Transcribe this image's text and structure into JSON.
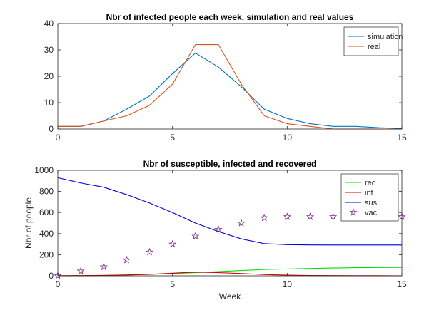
{
  "chart_data": [
    {
      "type": "line",
      "title": "Nbr of infected people each week, simulation and real values",
      "xlabel": "",
      "ylabel": "",
      "xlim": [
        0,
        15
      ],
      "ylim": [
        0,
        40
      ],
      "xticks": [
        0,
        5,
        10,
        15
      ],
      "yticks": [
        0,
        10,
        20,
        30,
        40
      ],
      "grid": false,
      "legend_position": "top-right",
      "series": [
        {
          "name": "simulation",
          "color": "#0072BD",
          "marker": "none",
          "x": [
            0,
            1,
            2,
            3,
            4,
            5,
            6,
            7,
            8,
            9,
            10,
            11,
            12,
            13,
            14,
            15
          ],
          "y": [
            1,
            1,
            3,
            7.5,
            12.5,
            21,
            28.8,
            23.5,
            16,
            7.5,
            4,
            2,
            1,
            1,
            0.5,
            0.2
          ]
        },
        {
          "name": "real",
          "color": "#D95319",
          "marker": "none",
          "x": [
            0,
            1,
            2,
            3,
            4,
            5,
            6,
            7,
            8,
            9,
            10,
            11,
            12,
            13,
            14,
            15
          ],
          "y": [
            1,
            1,
            3,
            5,
            9,
            17,
            32,
            32,
            17,
            5,
            2,
            1,
            0,
            0,
            0,
            0
          ]
        }
      ]
    },
    {
      "type": "line",
      "title": "Nbr of susceptible, infected and recovered",
      "xlabel": "Week",
      "ylabel": "Nbr of people",
      "xlim": [
        0,
        15
      ],
      "ylim": [
        0,
        1000
      ],
      "xticks": [
        0,
        5,
        10,
        15
      ],
      "yticks": [
        0,
        200,
        400,
        600,
        800,
        1000
      ],
      "grid": false,
      "legend_position": "top-right",
      "series": [
        {
          "name": "rec",
          "color": "#00E000",
          "marker": "none",
          "x": [
            0,
            1,
            2,
            3,
            4,
            5,
            6,
            7,
            8,
            9,
            10,
            11,
            12,
            13,
            14,
            15
          ],
          "y": [
            0,
            2,
            4,
            8,
            14,
            22,
            30,
            40,
            50,
            60,
            65,
            70,
            74,
            77,
            79,
            80
          ]
        },
        {
          "name": "inf",
          "color": "#D00000",
          "marker": "none",
          "x": [
            0,
            1,
            2,
            3,
            4,
            5,
            6,
            7,
            8,
            9,
            10,
            11,
            12,
            13,
            14,
            15
          ],
          "y": [
            1,
            2,
            4,
            8,
            14,
            25,
            35,
            30,
            22,
            12,
            6,
            3,
            2,
            1,
            1,
            0
          ]
        },
        {
          "name": "sus",
          "color": "#0000E0",
          "marker": "none",
          "x": [
            0,
            1,
            2,
            3,
            4,
            5,
            6,
            7,
            8,
            9,
            10,
            11,
            12,
            13,
            14,
            15
          ],
          "y": [
            930,
            880,
            840,
            770,
            690,
            600,
            500,
            420,
            350,
            305,
            295,
            293,
            292,
            292,
            292,
            292
          ]
        },
        {
          "name": "vac",
          "color": "#7E2F8E",
          "marker": "star",
          "line": "none",
          "x": [
            0,
            1,
            2,
            3,
            4,
            5,
            6,
            7,
            8,
            9,
            10,
            11,
            12,
            13,
            14,
            15
          ],
          "y": [
            0,
            45,
            85,
            150,
            225,
            300,
            375,
            440,
            500,
            550,
            560,
            560,
            560,
            560,
            560,
            560
          ]
        }
      ]
    }
  ]
}
